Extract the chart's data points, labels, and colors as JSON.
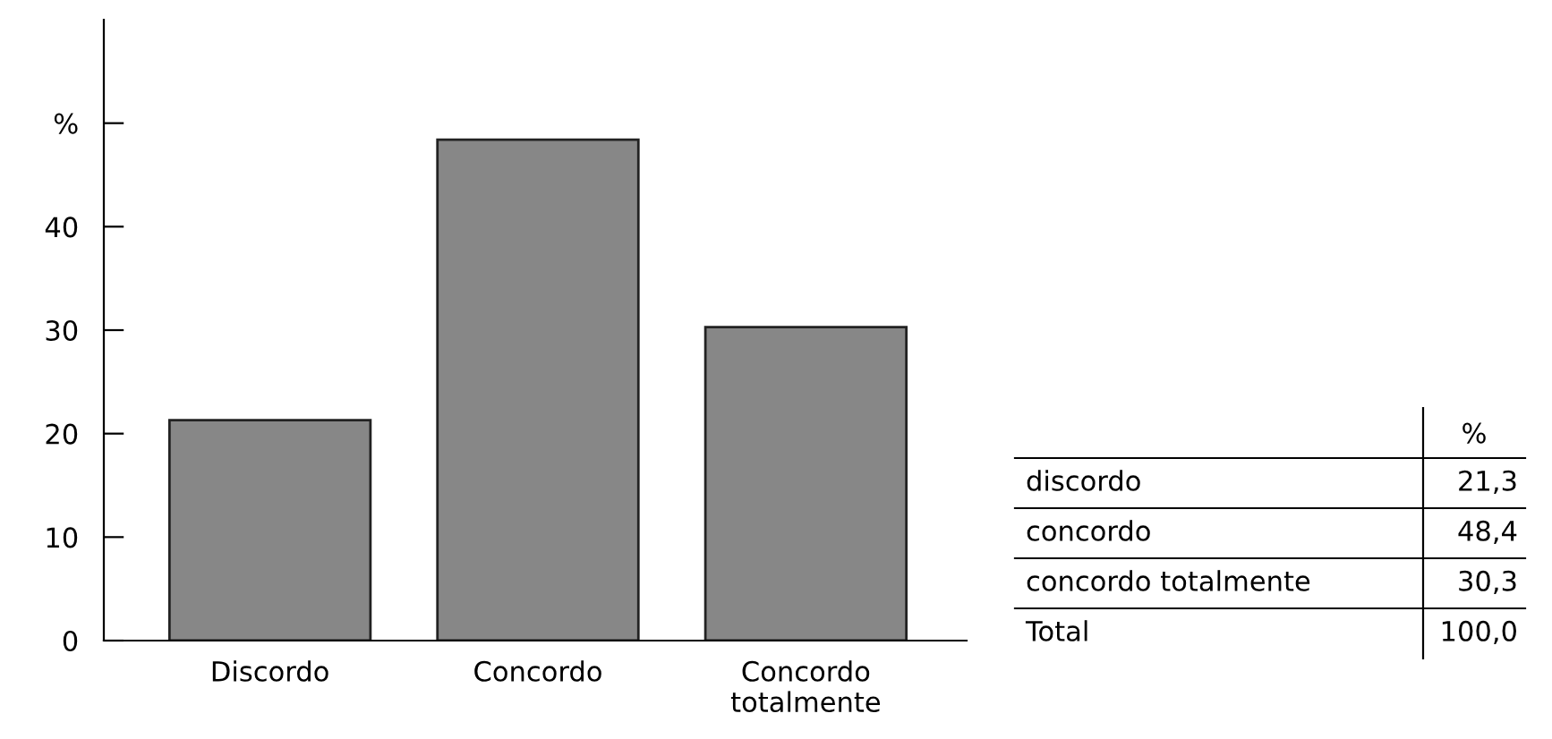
{
  "chart_data": {
    "type": "bar",
    "categories": [
      "Discordo",
      "Concordo",
      "Concordo\ntotalmente"
    ],
    "values": [
      21.3,
      48.4,
      30.3
    ],
    "color": "#878787",
    "ylim": [
      0,
      60
    ],
    "yticks": [
      0,
      10,
      20,
      30,
      40,
      {
        "value": 50,
        "label": "%"
      }
    ],
    "grid": false,
    "legend": false,
    "annotations": [
      "%",
      "discordo",
      "21,3",
      "concordo",
      "48,4",
      "concordo totalmente",
      "30,3",
      "Total",
      "100,0"
    ]
  }
}
